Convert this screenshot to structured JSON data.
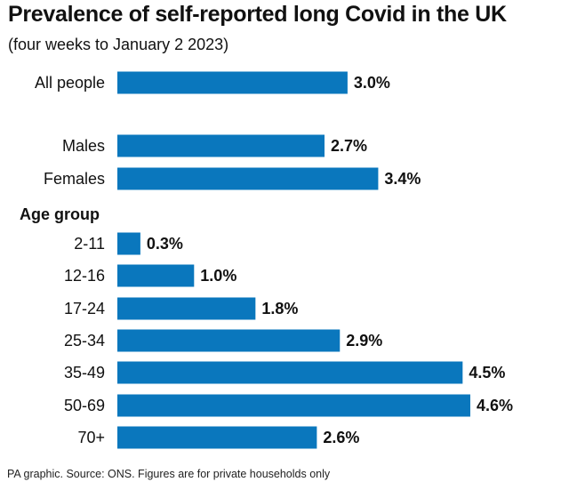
{
  "header": {
    "title": "Prevalence of self-reported long Covid in the UK",
    "subtitle": "(four weeks to January 2 2023)"
  },
  "footer": {
    "source": "PA graphic. Source: ONS. Figures are for private households only"
  },
  "colors": {
    "bar": "#0a77bd",
    "text": "#111111"
  },
  "chart_data": {
    "type": "bar",
    "orientation": "horizontal",
    "title": "Prevalence of self-reported long Covid in the UK",
    "subtitle": "(four weeks to January 2 2023)",
    "unit": "%",
    "xlim": [
      0,
      5.2
    ],
    "grid": false,
    "legend": "none",
    "section_label": "Age group",
    "categories": [
      "All people",
      "Males",
      "Females",
      "2-11",
      "12-16",
      "17-24",
      "25-34",
      "35-49",
      "50-69",
      "70+"
    ],
    "values": [
      3.0,
      2.7,
      3.4,
      0.3,
      1.0,
      1.8,
      2.9,
      4.5,
      4.6,
      2.6
    ],
    "value_labels": [
      "3.0%",
      "2.7%",
      "3.4%",
      "0.3%",
      "1.0%",
      "1.8%",
      "2.9%",
      "4.5%",
      "4.6%",
      "2.6%"
    ]
  }
}
